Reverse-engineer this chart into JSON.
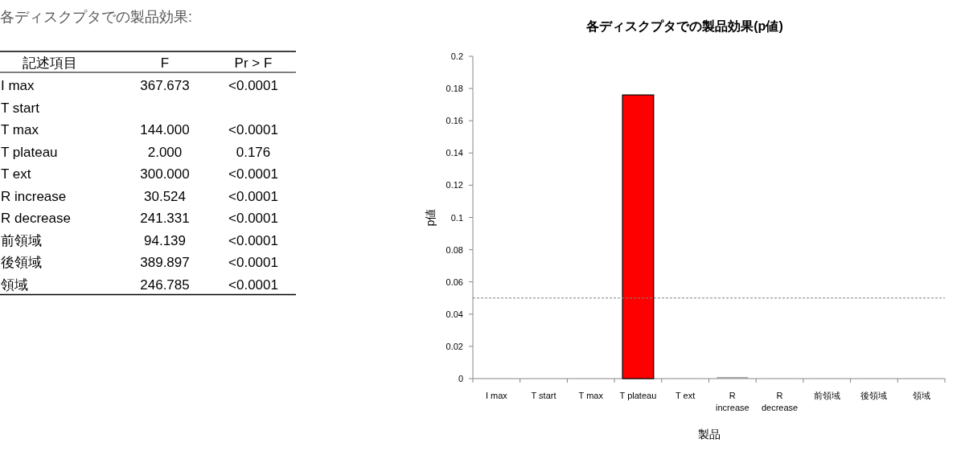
{
  "chart_data": [
    {
      "type": "other",
      "title": "各ディスクプタでの製品効果:",
      "xlabel": "記述項目",
      "categories": [
        "I max",
        "T start",
        "T max",
        "T plateau",
        "T ext",
        "R increase",
        "R decrease",
        "前領域",
        "後領域",
        "領域"
      ],
      "series": [
        {
          "name": "F",
          "values": [
            367.673,
            null,
            144.0,
            2.0,
            300.0,
            30.524,
            241.331,
            94.139,
            389.897,
            246.785
          ],
          "value_labels": [
            "367.673",
            null,
            "144.000",
            "2.000",
            "300.000",
            "30.524",
            "241.331",
            "94.139",
            "389.897",
            "246.785"
          ]
        },
        {
          "name": "Pr > F",
          "values": [
            null,
            null,
            null,
            0.176,
            null,
            null,
            null,
            null,
            null,
            null
          ],
          "value_labels": [
            "<0.0001",
            null,
            "<0.0001",
            "0.176",
            "<0.0001",
            "<0.0001",
            "<0.0001",
            "<0.0001",
            "<0.0001",
            "<0.0001"
          ]
        }
      ]
    },
    {
      "type": "bar",
      "title": "各ディスクプタでの製品効果(p値)",
      "xlabel": "製品",
      "ylabel": "p値",
      "categories": [
        "I max",
        "T start",
        "T max",
        "T plateau",
        "T ext",
        "R increase",
        "R decrease",
        "前領域",
        "後領域",
        "領域"
      ],
      "values": [
        0,
        null,
        0,
        0.176,
        0,
        0.001,
        0,
        0,
        0,
        0
      ],
      "colors": [
        "#a6a6a6",
        null,
        "#a6a6a6",
        "#ff0000",
        "#a6a6a6",
        "#a6a6a6",
        "#a6a6a6",
        "#a6a6a6",
        "#a6a6a6",
        "#a6a6a6"
      ],
      "ylim": [
        0,
        0.2
      ],
      "yticks": [
        0,
        0.02,
        0.04,
        0.06,
        0.08,
        0.1,
        0.12,
        0.14,
        0.16,
        0.18,
        0.2
      ],
      "ref_lines": [
        {
          "axis": "y",
          "value": 0.05,
          "color": "#808080",
          "line_style": "dashed"
        }
      ],
      "grid": false,
      "legend": false
    }
  ]
}
